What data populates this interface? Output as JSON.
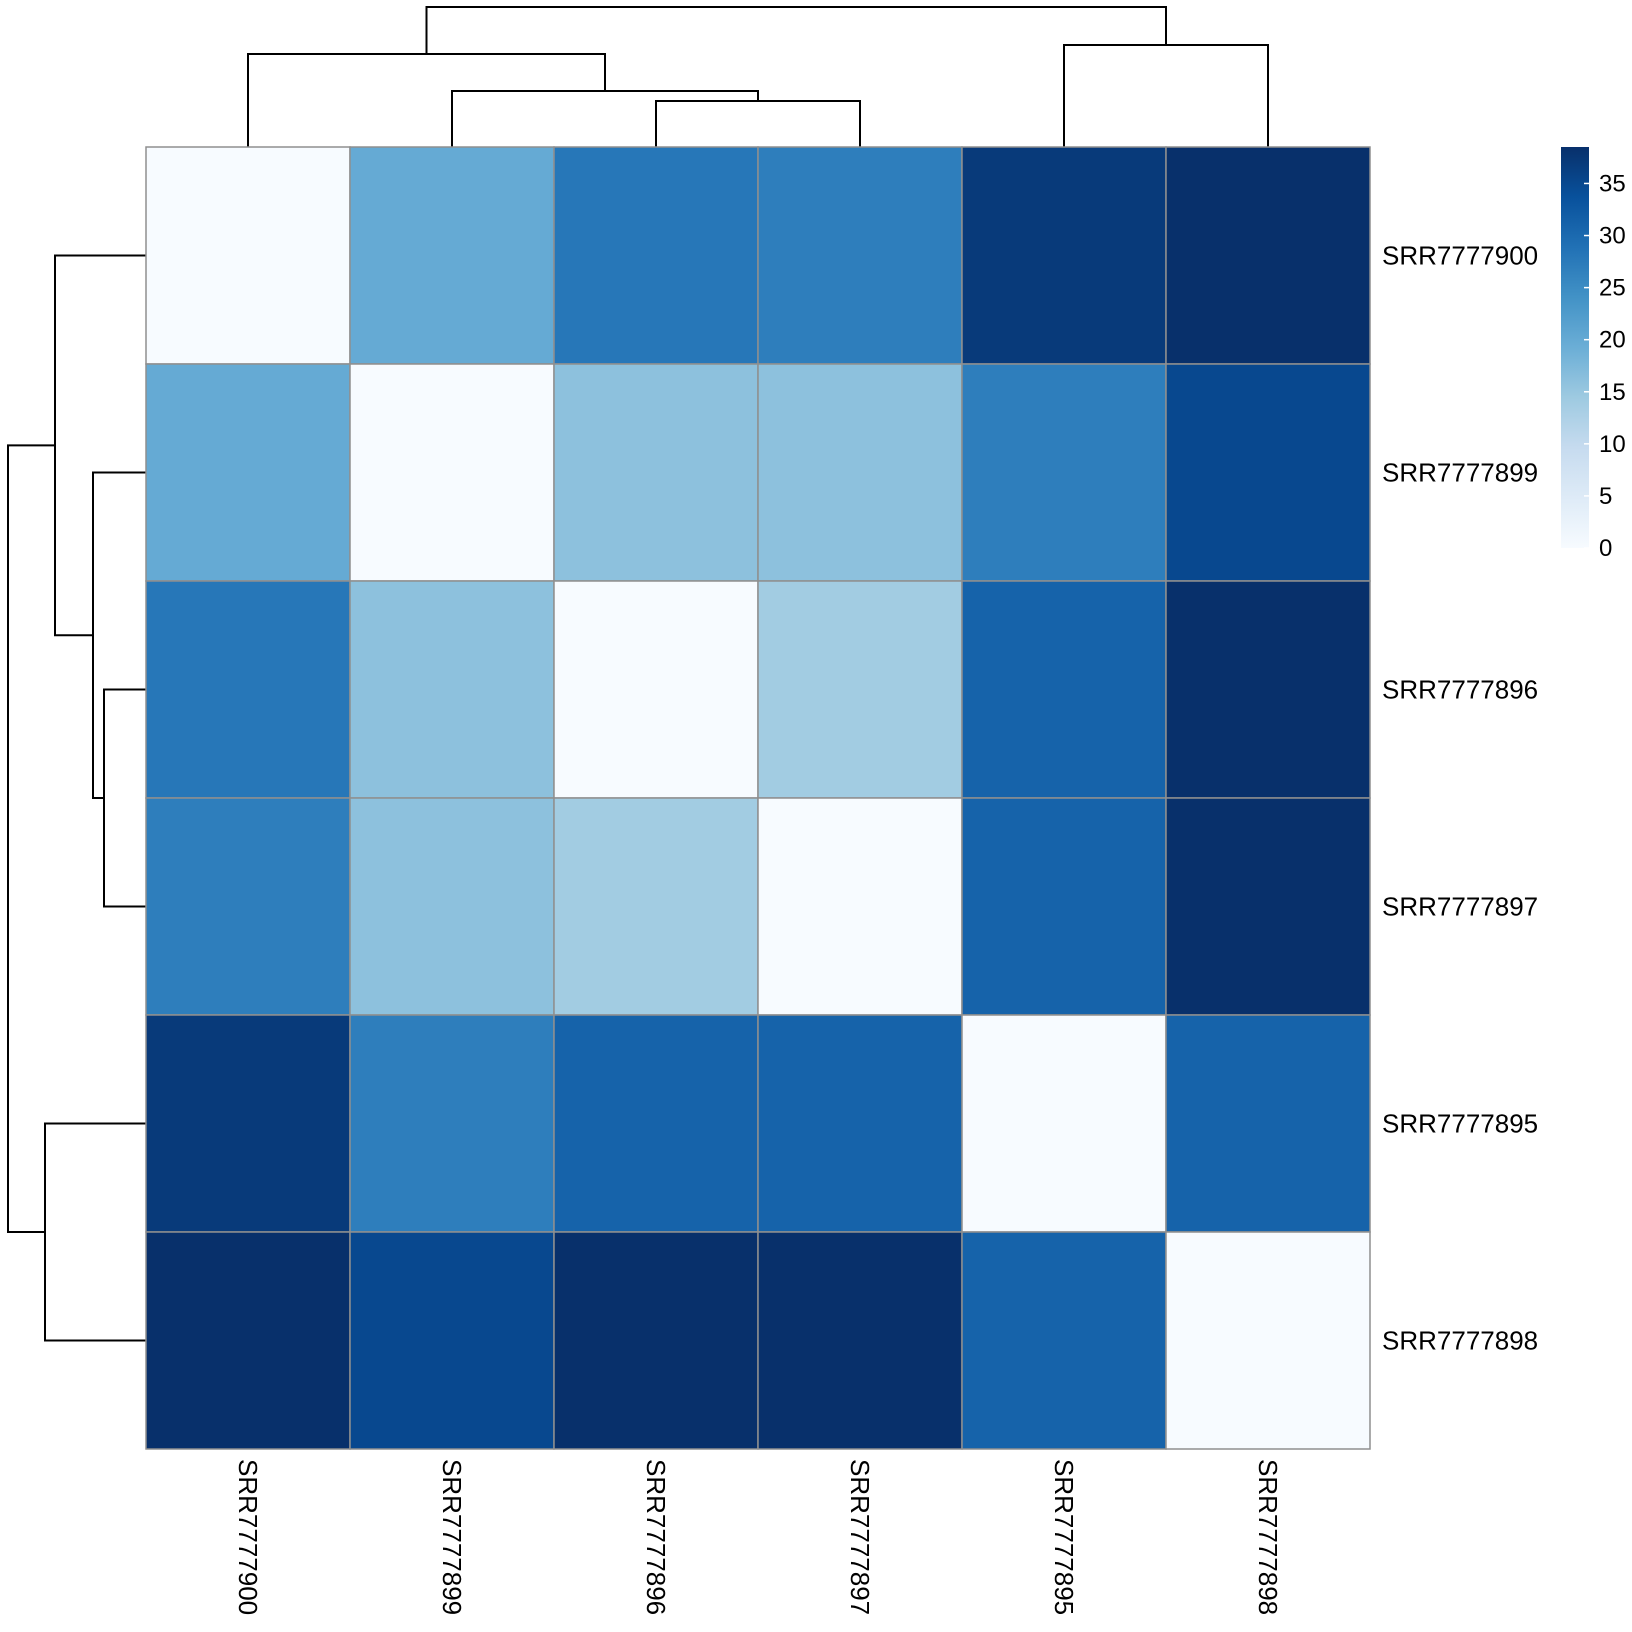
{
  "chart_data": {
    "type": "heatmap",
    "title": "",
    "rows": [
      "SRR7777900",
      "SRR7777899",
      "SRR7777896",
      "SRR7777897",
      "SRR7777895",
      "SRR7777898"
    ],
    "columns": [
      "SRR7777900",
      "SRR7777899",
      "SRR7777896",
      "SRR7777897",
      "SRR7777895",
      "SRR7777898"
    ],
    "values": [
      [
        0,
        20,
        28,
        27,
        37,
        39
      ],
      [
        20,
        0,
        16,
        16,
        27,
        35
      ],
      [
        28,
        16,
        0,
        14,
        31,
        39
      ],
      [
        27,
        16,
        14,
        0,
        31,
        39
      ],
      [
        37,
        27,
        31,
        31,
        0,
        31
      ],
      [
        39,
        35,
        39,
        39,
        31,
        0
      ]
    ],
    "color_scale": {
      "min": 0,
      "max": 38.5,
      "low_color": "#f7fbff",
      "high_color": "#08306b",
      "ticks": [
        0,
        5,
        10,
        15,
        20,
        25,
        30,
        35
      ]
    },
    "row_dendrogram": "((SRR7777900,(SRR7777899,(SRR7777896,SRR7777897))),(SRR7777895,SRR7777898))",
    "column_dendrogram": "((SRR7777900,(SRR7777899,(SRR7777896,SRR7777897))),(SRR7777895,SRR7777898))",
    "grid_color": "#8f8f8f"
  }
}
